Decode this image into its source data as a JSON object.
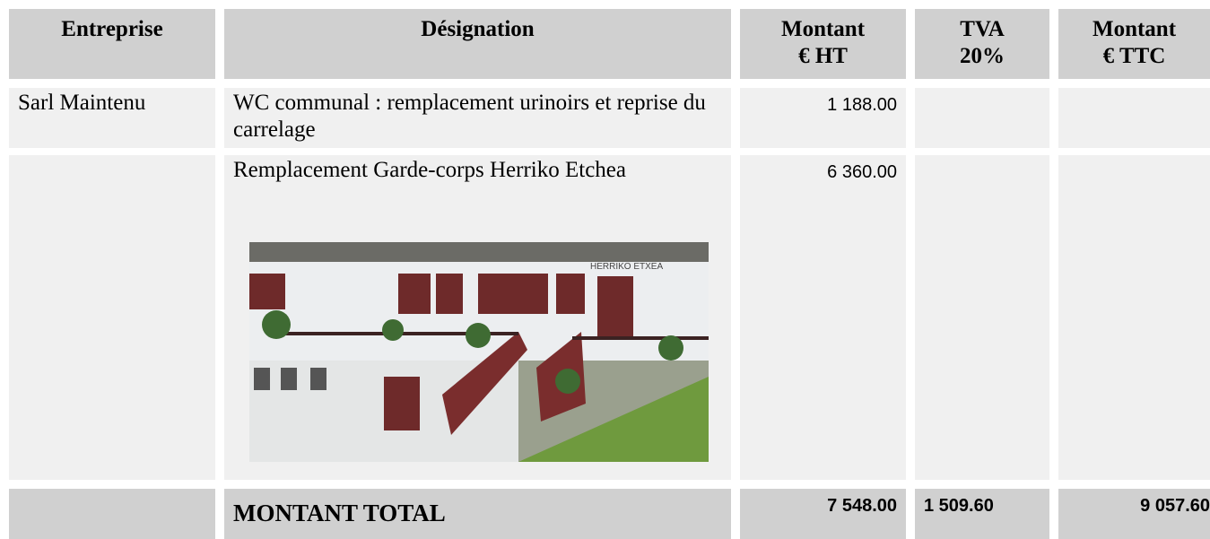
{
  "table": {
    "header": [
      [
        "Entreprise"
      ],
      [
        "Désignation"
      ],
      [
        "Montant",
        "€ HT"
      ],
      [
        "TVA",
        "20%"
      ],
      [
        "Montant",
        "€ TTC"
      ]
    ],
    "rows": [
      [
        "Sarl Maintenu",
        "WC communal : remplacement urinoirs et reprise du carrelage",
        "1 188.00"
      ],
      [
        "",
        "Remplacement Garde-corps Herriko Etchea",
        "6 360.00"
      ]
    ],
    "image_sign": "HERRIKO ETXEA",
    "total": {
      "label": "MONTANT TOTAL",
      "ht": "7 548.00",
      "tva": "1 509.60",
      "ttc": "9 057.60"
    }
  }
}
